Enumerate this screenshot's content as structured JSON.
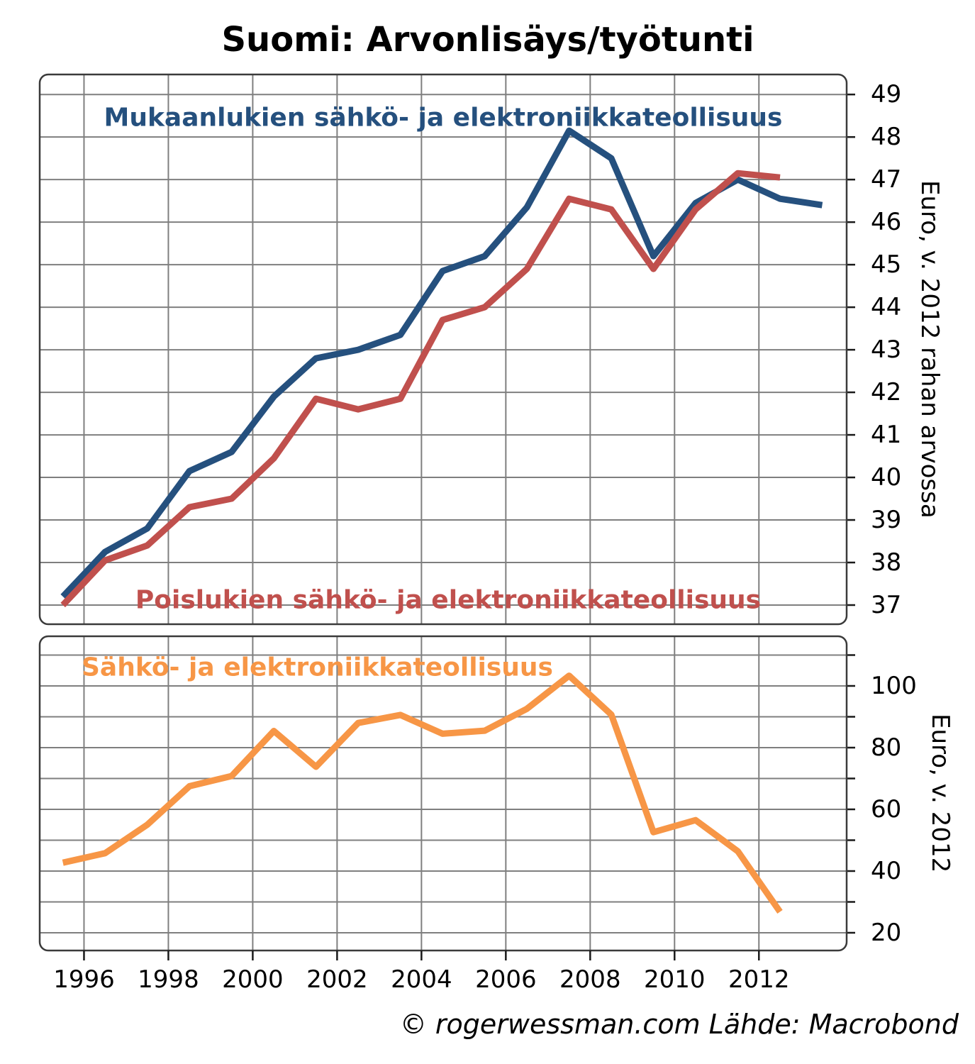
{
  "title": "Suomi: Arvonlisäys/työtunti",
  "footer": "© rogerwessman.com Lähde: Macrobond",
  "colors": {
    "blue": "#25507E",
    "red": "#C0504D",
    "orange": "#F79646",
    "grid": "#7F7F7F",
    "frame": "#3A3A3A",
    "tick": "#1A1A1A",
    "text": "#000000"
  },
  "chart_data": {
    "type": "line",
    "title": "Suomi: Arvonlisäys/työtunti",
    "grid": "on",
    "legend_position": "labels-inside-plot",
    "x_plot_offset": 0.5,
    "xticks": [
      1996,
      1998,
      2000,
      2002,
      2004,
      2006,
      2008,
      2010,
      2012
    ],
    "xlim": [
      1994.95,
      2014.08
    ],
    "panels": [
      {
        "id": "top",
        "ylabel": "Euro, v. 2012 rahan arvossa",
        "ylim": [
          36.55,
          49.47
        ],
        "yticks": [
          {
            "v": 37,
            "label": "37"
          },
          {
            "v": 38,
            "label": "38"
          },
          {
            "v": 39,
            "label": "39"
          },
          {
            "v": 40,
            "label": "40"
          },
          {
            "v": 41,
            "label": "41"
          },
          {
            "v": 42,
            "label": "42"
          },
          {
            "v": 43,
            "label": "43"
          },
          {
            "v": 44,
            "label": "44"
          },
          {
            "v": 45,
            "label": "45"
          },
          {
            "v": 46,
            "label": "46"
          },
          {
            "v": 47,
            "label": "47"
          },
          {
            "v": 48,
            "label": "48"
          },
          {
            "v": 49,
            "label": "49"
          }
        ],
        "series": [
          {
            "name": "Mukaanlukien sähkö- ja elektroniikkateollisuus",
            "color_key": "blue",
            "years": [
              1995,
              1996,
              1997,
              1998,
              1999,
              2000,
              2001,
              2002,
              2003,
              2004,
              2005,
              2006,
              2007,
              2008,
              2009,
              2010,
              2011,
              2012,
              2013
            ],
            "values": [
              37.2,
              38.25,
              38.8,
              40.15,
              40.6,
              41.9,
              42.8,
              43.0,
              43.35,
              44.85,
              45.2,
              46.35,
              48.15,
              47.5,
              45.2,
              46.45,
              47.0,
              46.55,
              46.4
            ]
          },
          {
            "name": "Poislukien sähkö- ja elektroniikkateollisuus",
            "color_key": "red",
            "years": [
              1995,
              1996,
              1997,
              1998,
              1999,
              2000,
              2001,
              2002,
              2003,
              2004,
              2005,
              2006,
              2007,
              2008,
              2009,
              2010,
              2011,
              2012
            ],
            "values": [
              37.0,
              38.05,
              38.4,
              39.3,
              39.5,
              40.45,
              41.85,
              41.6,
              41.85,
              43.7,
              44.0,
              44.9,
              46.55,
              46.3,
              44.9,
              46.3,
              47.15,
              47.05
            ]
          }
        ]
      },
      {
        "id": "bottom",
        "ylabel": "Euro, v. 2012",
        "ylim": [
          14.25,
          116.09
        ],
        "yticks": [
          {
            "v": 20,
            "label": "20"
          },
          {
            "v": 30,
            "label": ""
          },
          {
            "v": 40,
            "label": "40"
          },
          {
            "v": 50,
            "label": ""
          },
          {
            "v": 60,
            "label": "60"
          },
          {
            "v": 70,
            "label": ""
          },
          {
            "v": 80,
            "label": "80"
          },
          {
            "v": 90,
            "label": ""
          },
          {
            "v": 100,
            "label": "100"
          },
          {
            "v": 110,
            "label": ""
          }
        ],
        "series": [
          {
            "name": "Sähkö- ja elektroniikkateollisuus",
            "color_key": "orange",
            "years": [
              1995,
              1996,
              1997,
              1998,
              1999,
              2000,
              2001,
              2002,
              2003,
              2004,
              2005,
              2006,
              2007,
              2008,
              2009,
              2010,
              2011,
              2012
            ],
            "values": [
              42.7,
              45.8,
              55.0,
              67.5,
              70.8,
              85.4,
              73.8,
              88.0,
              90.6,
              84.5,
              85.5,
              92.6,
              103.3,
              90.7,
              52.6,
              56.5,
              46.4,
              26.8
            ]
          }
        ]
      }
    ]
  }
}
